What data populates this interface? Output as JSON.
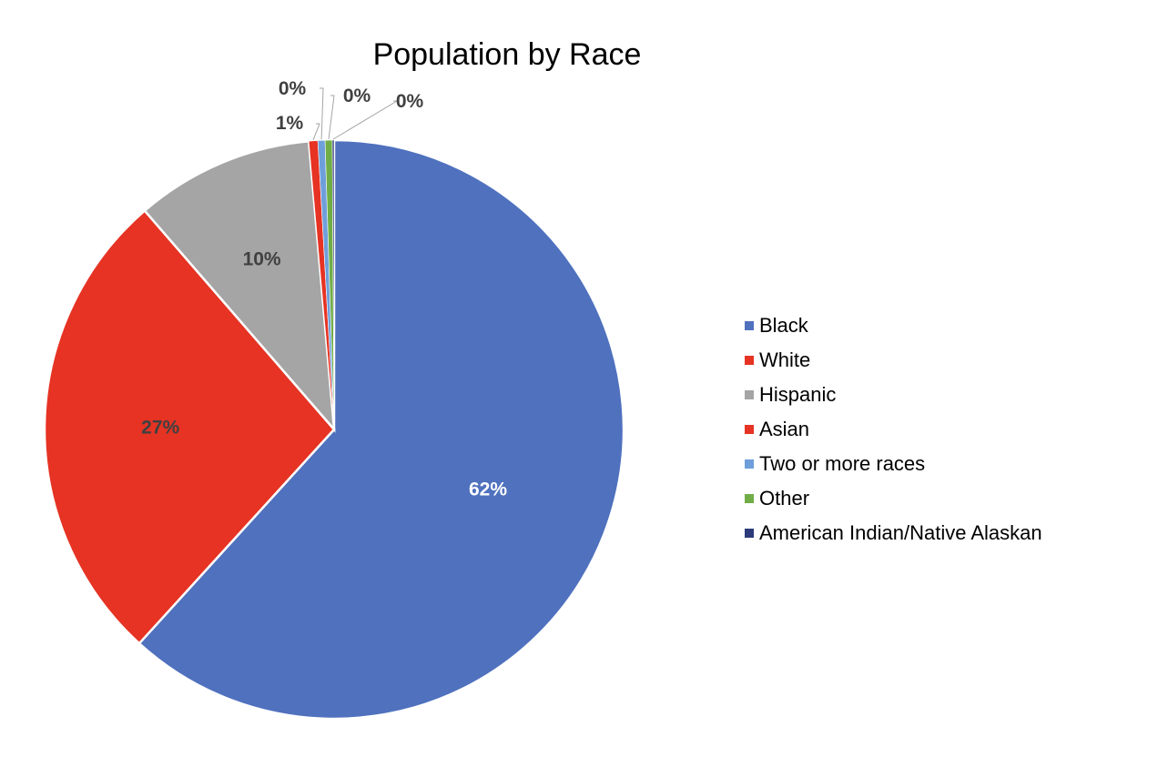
{
  "chart_data": {
    "type": "pie",
    "title": "Population by Race",
    "slices": [
      {
        "label": "Black",
        "value": 62,
        "display": "62%",
        "color": "#4f71be"
      },
      {
        "label": "White",
        "value": 27,
        "display": "27%",
        "color": "#e63323"
      },
      {
        "label": "Hispanic",
        "value": 10,
        "display": "10%",
        "color": "#a5a5a5"
      },
      {
        "label": "Asian",
        "value": 0.5,
        "display": "1%",
        "color": "#e63323"
      },
      {
        "label": "Two or more races",
        "value": 0.4,
        "display": "0%",
        "color": "#6f9fdb"
      },
      {
        "label": "Other",
        "value": 0.4,
        "display": "0%",
        "color": "#70ad47"
      },
      {
        "label": "American Indian/Native Alaskan",
        "value": 0.1,
        "display": "0%",
        "color": "#2d3b7a"
      }
    ],
    "legend_position": "right",
    "label_colors": {
      "on_slice_light": "#ffffff",
      "on_slice_dark": "#404040",
      "leader_line": "#a5a5a5"
    }
  }
}
